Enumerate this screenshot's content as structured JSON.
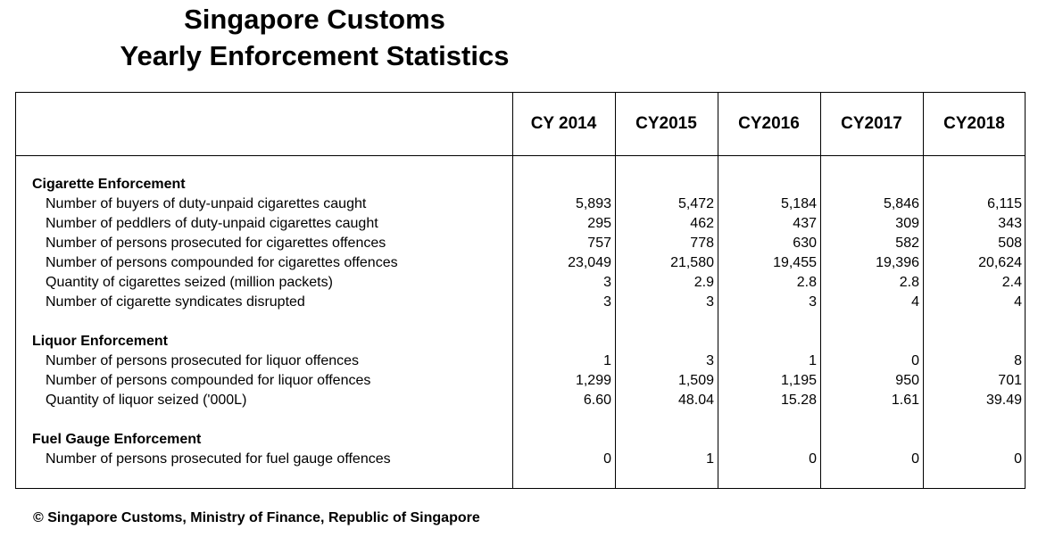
{
  "title": {
    "line1": "Singapore Customs",
    "line2": "Yearly Enforcement Statistics"
  },
  "table": {
    "years": [
      "CY 2014",
      "CY2015",
      "CY2016",
      "CY2017",
      "CY2018"
    ],
    "sections": [
      {
        "name": "Cigarette Enforcement",
        "rows": [
          {
            "label": "Number of buyers of duty-unpaid cigarettes caught",
            "values": [
              "5,893",
              "5,472",
              "5,184",
              "5,846",
              "6,115"
            ]
          },
          {
            "label": "Number of peddlers of duty-unpaid cigarettes caught",
            "values": [
              "295",
              "462",
              "437",
              "309",
              "343"
            ]
          },
          {
            "label": "Number of persons prosecuted for cigarettes offences",
            "values": [
              "757",
              "778",
              "630",
              "582",
              "508"
            ]
          },
          {
            "label": "Number of persons compounded for cigarettes offences",
            "values": [
              "23,049",
              "21,580",
              "19,455",
              "19,396",
              "20,624"
            ]
          },
          {
            "label": "Quantity of cigarettes seized (million packets)",
            "values": [
              "3",
              "2.9",
              "2.8",
              "2.8",
              "2.4"
            ]
          },
          {
            "label": "Number of cigarette syndicates disrupted",
            "values": [
              "3",
              "3",
              "3",
              "4",
              "4"
            ]
          }
        ]
      },
      {
        "name": "Liquor Enforcement",
        "rows": [
          {
            "label": "Number of persons prosecuted for liquor offences",
            "values": [
              "1",
              "3",
              "1",
              "0",
              "8"
            ]
          },
          {
            "label": "Number of persons compounded for liquor offences",
            "values": [
              "1,299",
              "1,509",
              "1,195",
              "950",
              "701"
            ]
          },
          {
            "label": "Quantity of liquor seized ('000L)",
            "values": [
              "6.60",
              "48.04",
              "15.28",
              "1.61",
              "39.49"
            ]
          }
        ]
      },
      {
        "name": "Fuel Gauge Enforcement",
        "rows": [
          {
            "label": "Number of persons prosecuted for fuel gauge offences",
            "values": [
              "0",
              "1",
              "0",
              "0",
              "0"
            ]
          }
        ]
      }
    ]
  },
  "footer": "© Singapore Customs, Ministry of Finance, Republic of Singapore"
}
